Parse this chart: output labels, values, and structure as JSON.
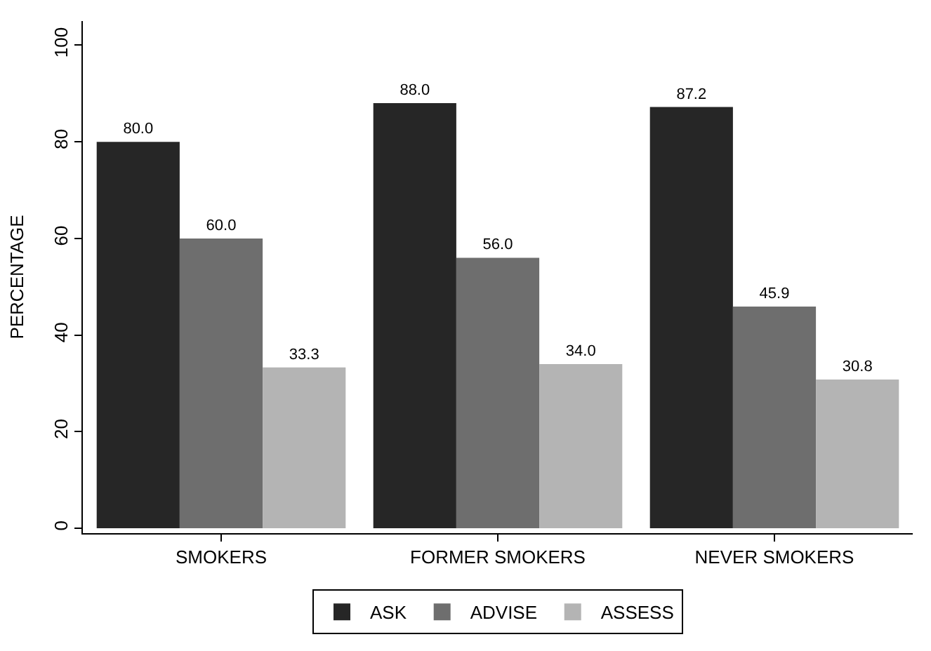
{
  "chart_data": {
    "type": "bar",
    "ylabel": "PERCENTAGE",
    "categories": [
      "SMOKERS",
      "FORMER SMOKERS",
      "NEVER SMOKERS"
    ],
    "series": [
      {
        "name": "ASK",
        "color": "#262626",
        "values": [
          80.0,
          88.0,
          87.2
        ]
      },
      {
        "name": "ADVISE",
        "color": "#6e6e6e",
        "values": [
          60.0,
          56.0,
          45.9
        ]
      },
      {
        "name": "ASSESS",
        "color": "#b4b4b4",
        "values": [
          33.3,
          34.0,
          30.8
        ]
      }
    ],
    "value_labels": [
      [
        "80.0",
        "88.0",
        "87.2"
      ],
      [
        "60.0",
        "56.0",
        "45.9"
      ],
      [
        "33.3",
        "34.0",
        "30.8"
      ]
    ],
    "ylim": [
      -1,
      105
    ],
    "yticks": [
      0,
      20,
      40,
      60,
      80,
      100
    ],
    "legend": "bottom"
  }
}
